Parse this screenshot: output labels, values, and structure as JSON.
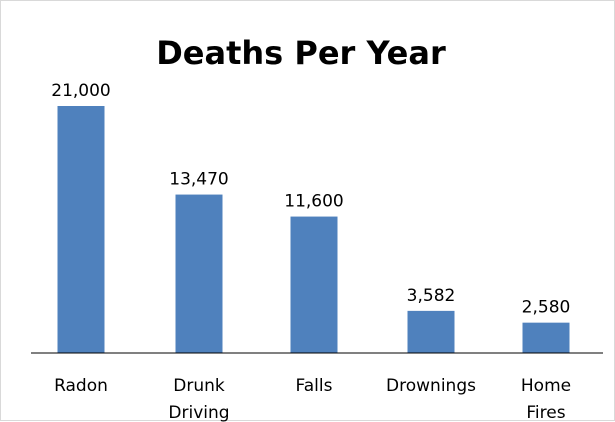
{
  "chart_data": {
    "type": "bar",
    "title": "Deaths Per Year",
    "categories": [
      [
        "Radon"
      ],
      [
        "Drunk",
        "Driving"
      ],
      [
        "Falls"
      ],
      [
        "Drownings"
      ],
      [
        "Home",
        "Fires"
      ]
    ],
    "values": [
      21000,
      13470,
      11600,
      3582,
      2580
    ],
    "data_labels": [
      "21,000",
      "13,470",
      "11,600",
      "3,582",
      "2,580"
    ],
    "xlabel": "",
    "ylabel": "",
    "ylim": [
      0,
      21000
    ],
    "grid": false,
    "legend": "none",
    "colors": {
      "bar": "#4F81BD",
      "axis": "#000000",
      "frame": "#d9d9d9"
    }
  }
}
